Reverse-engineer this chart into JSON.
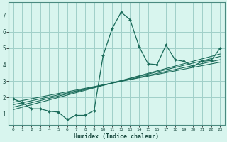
{
  "xlabel": "Humidex (Indice chaleur)",
  "background_color": "#d8f5ee",
  "grid_color": "#a0cfc8",
  "line_color": "#1a6b5a",
  "xlim": [
    -0.5,
    23.5
  ],
  "ylim": [
    0.3,
    7.8
  ],
  "yticks": [
    1,
    2,
    3,
    4,
    5,
    6,
    7
  ],
  "xticks": [
    0,
    1,
    2,
    3,
    4,
    5,
    6,
    7,
    8,
    9,
    10,
    11,
    12,
    13,
    14,
    15,
    16,
    17,
    18,
    19,
    20,
    21,
    22,
    23
  ],
  "main_x": [
    0,
    1,
    2,
    3,
    4,
    5,
    6,
    7,
    8,
    9,
    10,
    11,
    12,
    13,
    14,
    15,
    16,
    17,
    18,
    19,
    20,
    21,
    22,
    23
  ],
  "main_y": [
    1.9,
    1.7,
    1.3,
    1.3,
    1.15,
    1.1,
    0.65,
    0.9,
    0.9,
    1.2,
    4.55,
    6.2,
    7.2,
    6.75,
    5.1,
    4.05,
    4.0,
    5.2,
    4.3,
    4.2,
    3.9,
    4.2,
    4.25,
    5.0
  ],
  "trend_lines": [
    {
      "x": [
        0,
        23
      ],
      "y": [
        1.7,
        4.15
      ]
    },
    {
      "x": [
        0,
        23
      ],
      "y": [
        1.55,
        4.3
      ]
    },
    {
      "x": [
        0,
        23
      ],
      "y": [
        1.4,
        4.5
      ]
    },
    {
      "x": [
        0,
        23
      ],
      "y": [
        1.25,
        4.65
      ]
    }
  ]
}
